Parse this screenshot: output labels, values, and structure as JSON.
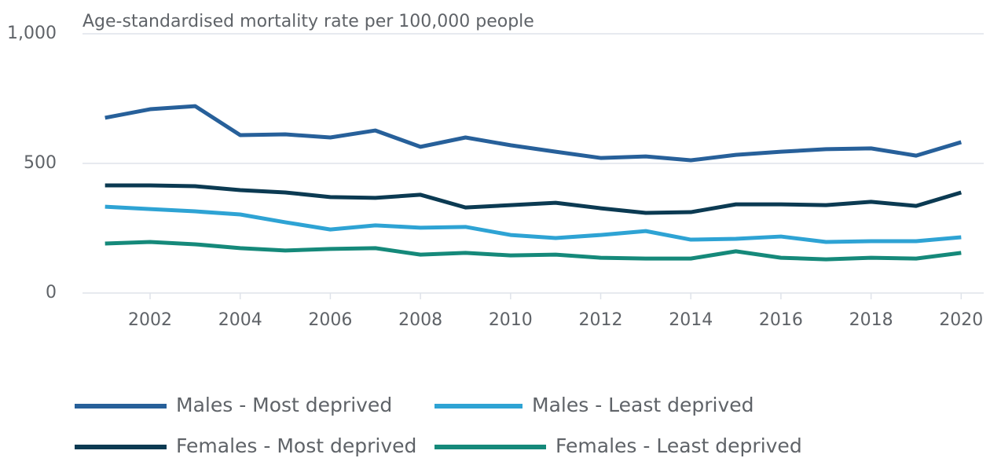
{
  "chart_data": {
    "type": "line",
    "title": "Age-standardised mortality rate per 100,000 people",
    "x": [
      2001,
      2002,
      2003,
      2004,
      2005,
      2006,
      2007,
      2008,
      2009,
      2010,
      2011,
      2012,
      2013,
      2014,
      2015,
      2016,
      2017,
      2018,
      2019,
      2020
    ],
    "series": [
      {
        "name": "Males - Most deprived",
        "color": "#27609a",
        "values": [
          676,
          709,
          721,
          609,
          612,
          600,
          627,
          564,
          600,
          570,
          545,
          521,
          527,
          512,
          533,
          545,
          555,
          558,
          530,
          582
        ]
      },
      {
        "name": "Males - Least deprived",
        "color": "#2ea3d4",
        "values": [
          333,
          324,
          315,
          303,
          273,
          245,
          261,
          252,
          255,
          224,
          212,
          224,
          239,
          206,
          209,
          218,
          197,
          200,
          200,
          215
        ]
      },
      {
        "name": "Females - Most deprived",
        "color": "#0b3a52",
        "values": [
          415,
          415,
          412,
          397,
          388,
          370,
          367,
          379,
          330,
          339,
          348,
          327,
          309,
          312,
          342,
          342,
          339,
          352,
          336,
          388
        ]
      },
      {
        "name": "Females - Least deprived",
        "color": "#15897a",
        "values": [
          191,
          197,
          188,
          173,
          164,
          170,
          173,
          148,
          155,
          145,
          148,
          136,
          133,
          133,
          161,
          136,
          130,
          136,
          133,
          155
        ]
      }
    ],
    "xlim": [
      2000.5,
      2020.5
    ],
    "xticks": [
      2002,
      2004,
      2006,
      2008,
      2010,
      2012,
      2014,
      2016,
      2018,
      2020
    ],
    "ylim": [
      0,
      1000
    ],
    "yticks": [
      0,
      500,
      {
        "value": 1000,
        "label": "1,000"
      }
    ],
    "grid": true
  }
}
